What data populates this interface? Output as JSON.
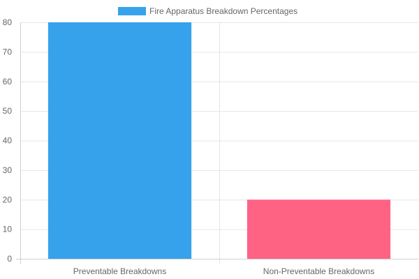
{
  "chart_data": {
    "type": "bar",
    "categories": [
      "Preventable Breakdowns",
      "Non-Preventable Breakdowns"
    ],
    "series": [
      {
        "name": "Fire Apparatus Breakdown Percentages",
        "values": [
          80,
          20
        ],
        "colors": [
          "#36A2EB",
          "#FF6384"
        ]
      }
    ],
    "ylim": [
      0,
      80
    ],
    "yticks": [
      0,
      10,
      20,
      30,
      40,
      50,
      60,
      70,
      80
    ],
    "grid": true,
    "legend": "top-center",
    "legend_swatch_color": "#36A2EB"
  }
}
